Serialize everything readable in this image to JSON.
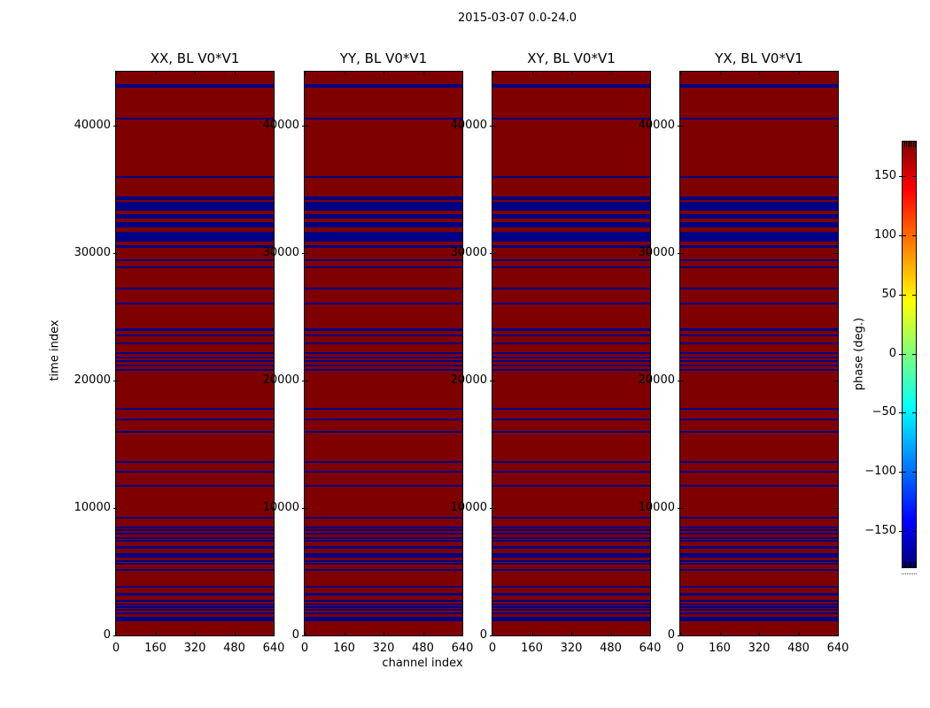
{
  "figure": {
    "title": "2015-03-07 0.0-24.0",
    "xlabel": "channel index",
    "ylabel": "time index",
    "colorbar_label": "phase (deg.)"
  },
  "chart_data": {
    "type": "heatmap",
    "title": "2015-03-07 0.0-24.0",
    "panels": [
      {
        "title": "XX, BL V0*V1"
      },
      {
        "title": "YY, BL V0*V1"
      },
      {
        "title": "XY, BL V0*V1"
      },
      {
        "title": "YX, BL V0*V1"
      }
    ],
    "x": {
      "label": "channel index",
      "range": [
        0,
        640
      ],
      "ticks": [
        0,
        160,
        320,
        480,
        640
      ]
    },
    "y": {
      "label": "time index",
      "range": [
        0,
        44236
      ],
      "ticks": [
        0,
        10000,
        20000,
        30000,
        40000
      ]
    },
    "colorbar": {
      "label": "phase (deg.)",
      "range": [
        -180,
        180
      ],
      "ticks": [
        150,
        100,
        50,
        0,
        -50,
        -100,
        -150
      ],
      "colormap": "jet"
    },
    "colors": {
      "high_phase": "#7f0000",
      "low_phase": "#000085"
    },
    "background_value": 180,
    "stripe_value": -180,
    "note": "All four polarization panels show the same pattern: phase +180 deg background with horizontal bands of -180 deg at these time-index ranges",
    "stripes": [
      [
        42980,
        43260
      ],
      [
        40480,
        40620
      ],
      [
        35900,
        36040
      ],
      [
        34190,
        34460
      ],
      [
        33310,
        34050
      ],
      [
        32730,
        33030
      ],
      [
        32030,
        32450
      ],
      [
        30920,
        31690
      ],
      [
        30420,
        30640
      ],
      [
        29370,
        29510
      ],
      [
        28820,
        28960
      ],
      [
        27150,
        27290
      ],
      [
        25970,
        26110
      ],
      [
        23890,
        24100
      ],
      [
        23470,
        23610
      ],
      [
        22850,
        22990
      ],
      [
        22080,
        22220
      ],
      [
        21740,
        21870
      ],
      [
        21460,
        21600
      ],
      [
        21110,
        21250
      ],
      [
        20760,
        20900
      ],
      [
        17710,
        17850
      ],
      [
        16870,
        17010
      ],
      [
        15900,
        16040
      ],
      [
        13540,
        13680
      ],
      [
        12780,
        12920
      ],
      [
        11670,
        11800
      ],
      [
        9170,
        9300
      ],
      [
        8400,
        8540
      ],
      [
        8190,
        8330
      ],
      [
        7920,
        8060
      ],
      [
        7570,
        7710
      ],
      [
        7360,
        7500
      ],
      [
        6810,
        7010
      ],
      [
        6110,
        6460
      ],
      [
        5760,
        5900
      ],
      [
        5560,
        5690
      ],
      [
        5070,
        5210
      ],
      [
        3750,
        3890
      ],
      [
        3130,
        3330
      ],
      [
        2640,
        2780
      ],
      [
        2360,
        2500
      ],
      [
        2150,
        2290
      ],
      [
        1940,
        2080
      ],
      [
        1670,
        1810
      ],
      [
        1110,
        1460
      ]
    ]
  }
}
